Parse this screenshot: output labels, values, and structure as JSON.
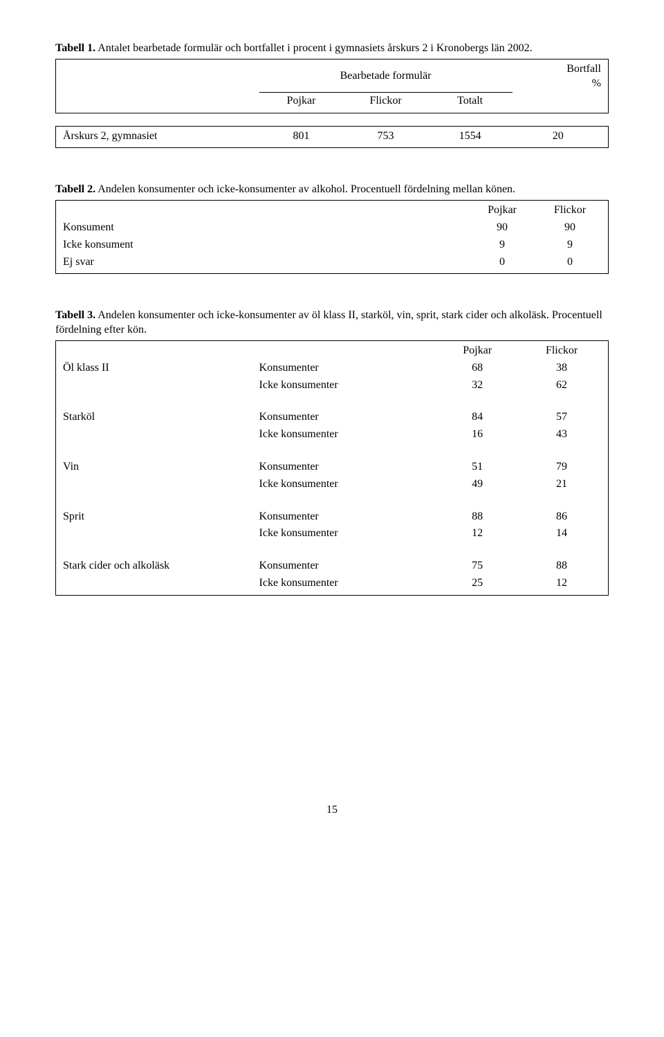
{
  "table1": {
    "caption_part1": "Tabell 1.",
    "caption_part2": " Antalet bearbetade formulär och bortfallet i procent i gymnasiets årskurs 2 i Kronobergs län 2002.",
    "header_bearbetade": "Bearbetade formulär",
    "header_bortfall": "Bortfall",
    "header_percent": "%",
    "col_pojkar": "Pojkar",
    "col_flickor": "Flickor",
    "col_totalt": "Totalt",
    "row_label": "Årskurs 2, gymnasiet",
    "val_pojkar": "801",
    "val_flickor": "753",
    "val_totalt": "1554",
    "val_bortfall": "20"
  },
  "table2": {
    "caption_part1": "Tabell 2.",
    "caption_part2": " Andelen konsumenter och icke-konsumenter av alkohol. Procentuell fördelning mellan könen.",
    "col_pojkar": "Pojkar",
    "col_flickor": "Flickor",
    "rows": [
      {
        "label": "Konsument",
        "p": "90",
        "f": "90"
      },
      {
        "label": "Icke konsument",
        "p": "9",
        "f": "9"
      },
      {
        "label": "Ej svar",
        "p": "0",
        "f": "0"
      }
    ]
  },
  "table3": {
    "caption_part1": "Tabell 3.",
    "caption_part2": " Andelen konsumenter och icke-konsumenter av öl klass II, starköl, vin, sprit, stark cider och alkoläsk. Procentuell fördelning efter kön.",
    "col_pojkar": "Pojkar",
    "col_flickor": "Flickor",
    "groups": [
      {
        "label": "Öl klass II",
        "sub": [
          {
            "label": "Konsumenter",
            "p": "68",
            "f": "38"
          },
          {
            "label": "Icke konsumenter",
            "p": "32",
            "f": "62"
          }
        ]
      },
      {
        "label": "Starköl",
        "sub": [
          {
            "label": "Konsumenter",
            "p": "84",
            "f": "57"
          },
          {
            "label": "Icke konsumenter",
            "p": "16",
            "f": "43"
          }
        ]
      },
      {
        "label": "Vin",
        "sub": [
          {
            "label": "Konsumenter",
            "p": "51",
            "f": "79"
          },
          {
            "label": "Icke konsumenter",
            "p": "49",
            "f": "21"
          }
        ]
      },
      {
        "label": "Sprit",
        "sub": [
          {
            "label": "Konsumenter",
            "p": "88",
            "f": "86"
          },
          {
            "label": "Icke konsumenter",
            "p": "12",
            "f": "14"
          }
        ]
      },
      {
        "label": "Stark cider och alkoläsk",
        "sub": [
          {
            "label": "Konsumenter",
            "p": "75",
            "f": "88"
          },
          {
            "label": "Icke konsumenter",
            "p": "25",
            "f": "12"
          }
        ]
      }
    ]
  },
  "page_number": "15"
}
